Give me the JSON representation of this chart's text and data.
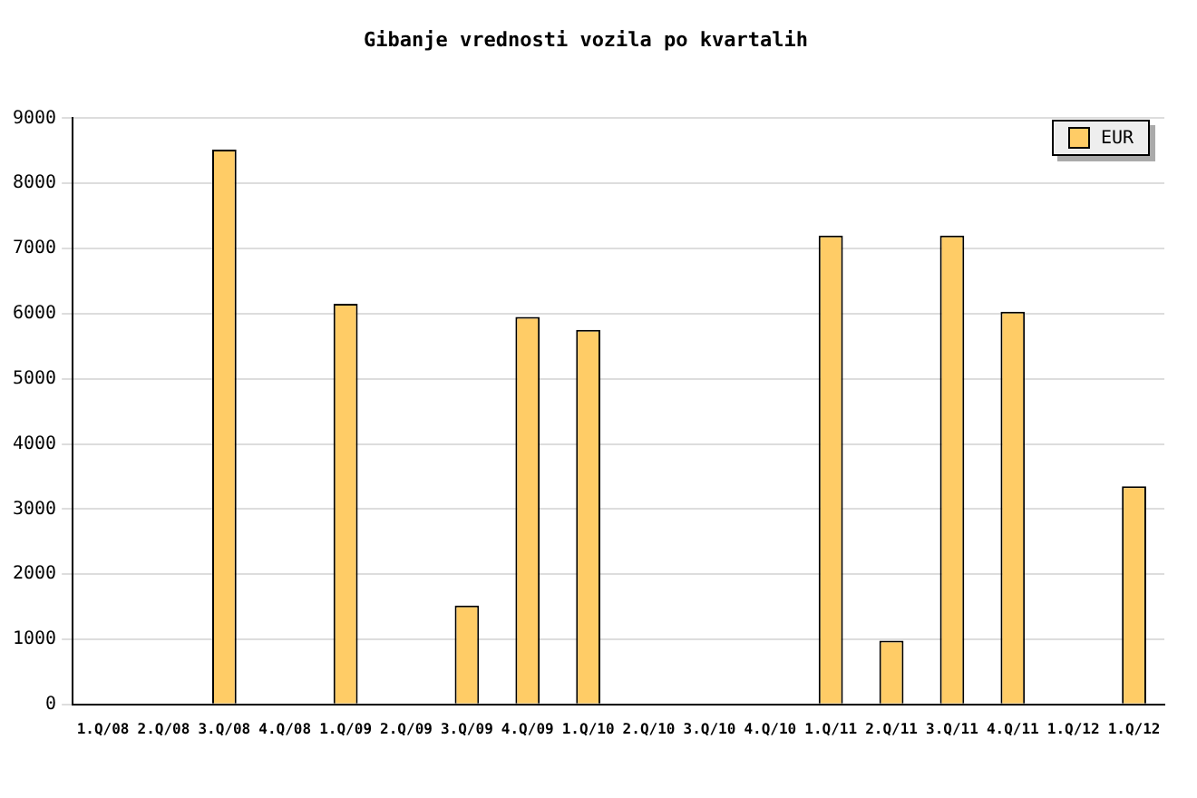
{
  "chart_data": {
    "type": "bar",
    "title": "Gibanje vrednosti vozila po kvartalih",
    "categories": [
      "1.Q/08",
      "2.Q/08",
      "3.Q/08",
      "4.Q/08",
      "1.Q/09",
      "2.Q/09",
      "3.Q/09",
      "4.Q/09",
      "1.Q/10",
      "2.Q/10",
      "3.Q/10",
      "4.Q/10",
      "1.Q/11",
      "2.Q/11",
      "3.Q/11",
      "4.Q/11",
      "1.Q/12",
      "1.Q/12"
    ],
    "series": [
      {
        "name": "EUR",
        "color": "#ffcc66",
        "values": [
          null,
          null,
          8520,
          null,
          6150,
          null,
          1520,
          5950,
          5750,
          null,
          null,
          null,
          7200,
          980,
          7200,
          6030,
          null,
          3350
        ]
      }
    ],
    "ylim": [
      0,
      9000
    ],
    "yticks": [
      0,
      1000,
      2000,
      3000,
      4000,
      5000,
      6000,
      7000,
      8000,
      9000
    ],
    "grid": "y",
    "legend": "top right"
  }
}
